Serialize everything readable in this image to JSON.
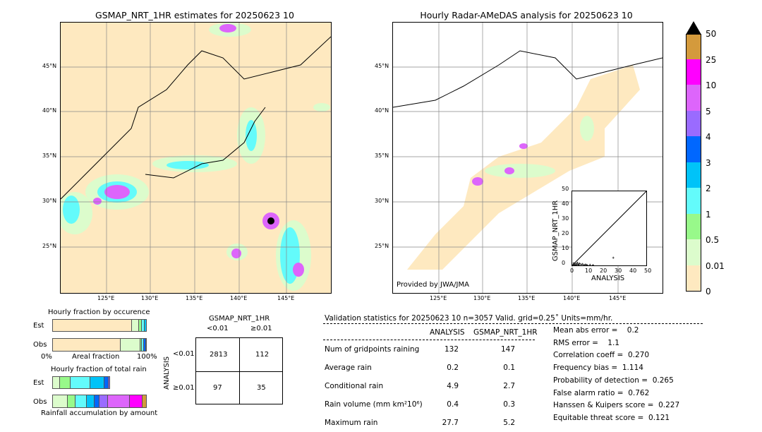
{
  "left_map": {
    "title": "GSMAP_NRT_1HR estimates for 20250623 10",
    "bg": "#fee9c0"
  },
  "right_map": {
    "title": "Hourly Radar-AMeDAS analysis for 20250623 10",
    "credit": "Provided by JWA/JMA"
  },
  "lon_ticks": [
    "125°E",
    "130°E",
    "135°E",
    "140°E",
    "145°E"
  ],
  "lat_ticks": [
    "45°N",
    "40°N",
    "35°N",
    "30°N",
    "25°N"
  ],
  "colorbar": {
    "labels": [
      "0",
      "0.01",
      "0.5",
      "1",
      "2",
      "3",
      "4",
      "5",
      "10",
      "25",
      "50"
    ],
    "colors": [
      "#fee9c0",
      "#dcfccc",
      "#98f98a",
      "#63fbfb",
      "#00c3f8",
      "#0067ff",
      "#9a6bff",
      "#dd65fb",
      "#ff00ff",
      "#d49a3c"
    ],
    "extend_color": "#000000"
  },
  "scatter": {
    "xlabel": "ANALYSIS",
    "ylabel": "GSMAP_NRT_1HR",
    "ticks": [
      "0",
      "10",
      "20",
      "30",
      "40",
      "50"
    ]
  },
  "occurrence": {
    "title": "Hourly fraction by occurence",
    "est": "Est",
    "obs": "Obs",
    "xlabel": "Areal fraction",
    "x0": "0%",
    "x1": "100%"
  },
  "total_rain": {
    "title": "Hourly fraction of total rain",
    "est": "Est",
    "obs": "Obs",
    "xlabel": "Rainfall accumulation by amount"
  },
  "contingency": {
    "col_title": "GSMAP_NRT_1HR",
    "col1": "<0.01",
    "col2": "≥0.01",
    "row_title": "ANALYSIS",
    "row1": "<0.01",
    "row2": "≥0.01",
    "cells": [
      "2813",
      "112",
      "97",
      "35"
    ]
  },
  "stats": {
    "header": "Validation statistics for 20250623 10  n=3057 Valid. grid=0.25˚ Units=mm/hr.",
    "col_a": "ANALYSIS",
    "col_b": "GSMAP_NRT_1HR",
    "rows": [
      {
        "label": "Num of gridpoints raining",
        "a": "132",
        "b": "147"
      },
      {
        "label": "Average rain",
        "a": "0.2",
        "b": "0.1"
      },
      {
        "label": "Conditional rain",
        "a": "4.9",
        "b": "2.7"
      },
      {
        "label": "Rain volume (mm km²10⁶)",
        "a": "0.4",
        "b": "0.3"
      },
      {
        "label": "Maximum rain",
        "a": "27.7",
        "b": "5.2"
      }
    ],
    "scores": [
      "Mean abs error =    0.2",
      "RMS error =    1.1",
      "Correlation coeff =  0.270",
      "Frequency bias =  1.114",
      "Probability of detection =  0.265",
      "False alarm ratio =  0.762",
      "Hanssen & Kuipers score =  0.227",
      "Equitable threat score =  0.121"
    ]
  }
}
